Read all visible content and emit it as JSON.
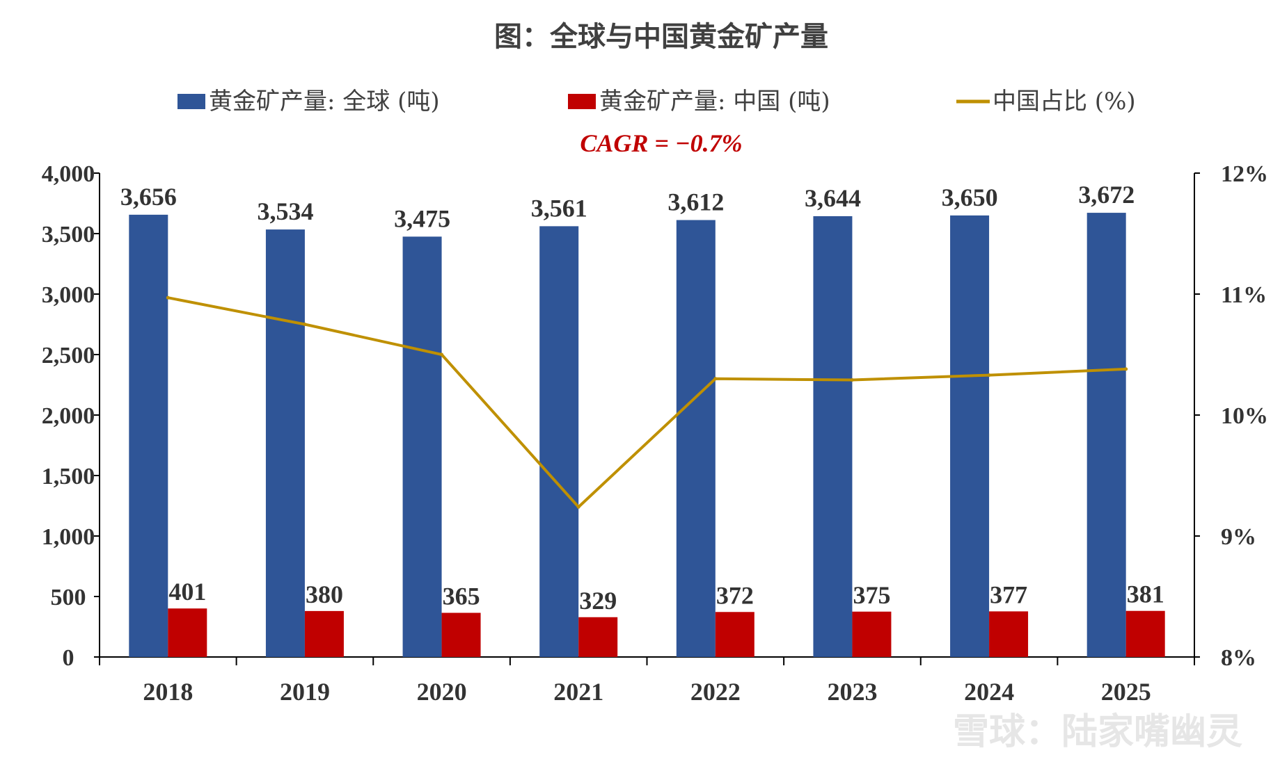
{
  "chart_data": {
    "type": "bar+line",
    "title": "图：全球与中国黄金矿产量",
    "annotation": "CAGR = −0.7%",
    "categories": [
      "2018",
      "2019",
      "2020",
      "2021",
      "2022",
      "2023",
      "2024",
      "2025"
    ],
    "series": [
      {
        "name": "黄金矿产量: 全球 (吨)",
        "type": "bar",
        "axis": "left",
        "color": "#2F5597",
        "values": [
          3656,
          3534,
          3475,
          3561,
          3612,
          3644,
          3650,
          3672
        ],
        "labels": [
          "3,656",
          "3,534",
          "3,475",
          "3,561",
          "3,612",
          "3,644",
          "3,650",
          "3,672"
        ]
      },
      {
        "name": "黄金矿产量: 中国 (吨)",
        "type": "bar",
        "axis": "left",
        "color": "#C00000",
        "values": [
          401,
          380,
          365,
          329,
          372,
          375,
          377,
          381
        ],
        "labels": [
          "401",
          "380",
          "365",
          "329",
          "372",
          "375",
          "377",
          "381"
        ]
      },
      {
        "name": "中国占比 (%)",
        "type": "line",
        "axis": "right",
        "color": "#BF9000",
        "values": [
          10.97,
          10.75,
          10.5,
          9.24,
          10.3,
          10.29,
          10.33,
          10.38
        ]
      }
    ],
    "y_left": {
      "range": [
        0,
        4000
      ],
      "ticks": [
        0,
        500,
        1000,
        1500,
        2000,
        2500,
        3000,
        3500,
        4000
      ],
      "tick_labels": [
        "0",
        "500",
        "1,000",
        "1,500",
        "2,000",
        "2,500",
        "3,000",
        "3,500",
        "4,000"
      ]
    },
    "y_right": {
      "range": [
        8,
        12
      ],
      "ticks": [
        8,
        9,
        10,
        11,
        12
      ],
      "tick_labels": [
        "8%",
        "9%",
        "10%",
        "11%",
        "12%"
      ]
    },
    "legend_position": "top",
    "grid": false
  },
  "watermark": "雪球：陆家嘴幽灵"
}
